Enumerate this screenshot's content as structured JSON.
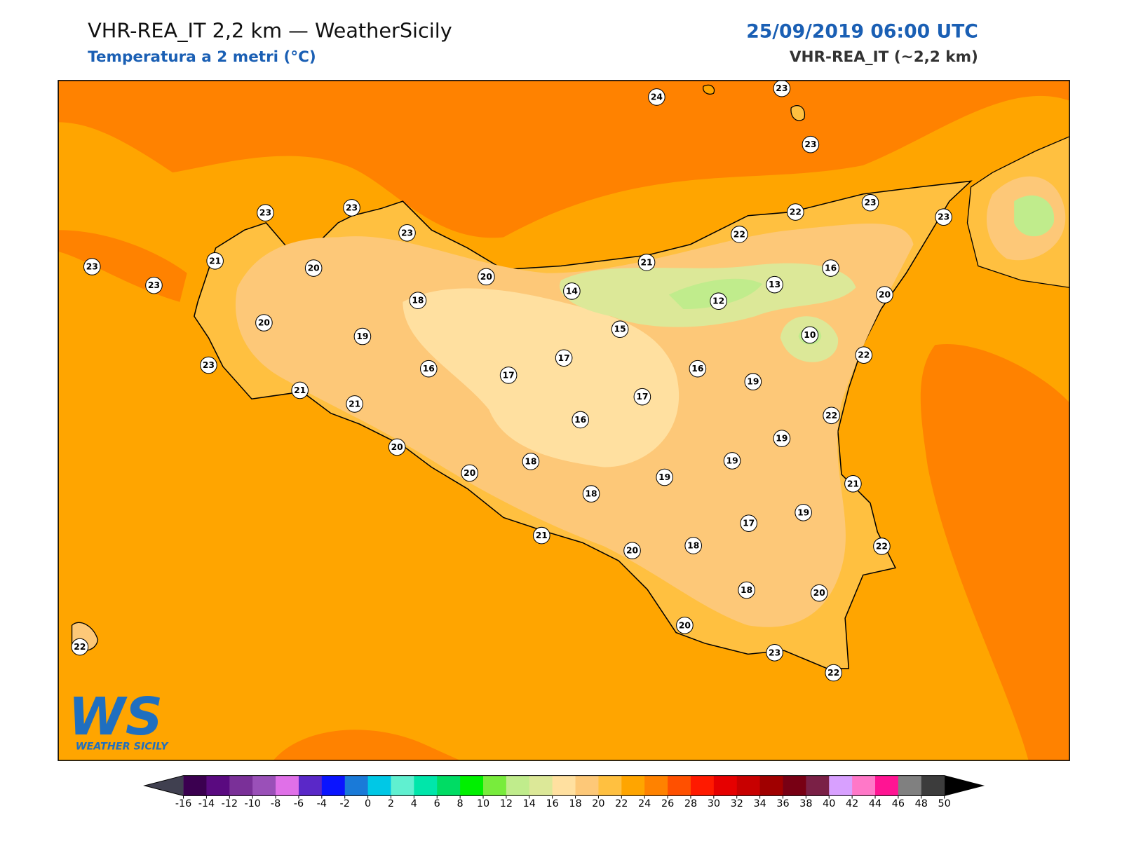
{
  "header": {
    "title": "VHR-REA_IT 2,2 km — WeatherSicily",
    "subtitle": "Temperatura a 2 metri (°C)",
    "datetime": "25/09/2019 06:00 UTC",
    "model": "VHR-REA_IT (~2,2 km)"
  },
  "stations": [
    24,
    23,
    23,
    23,
    23,
    23,
    22,
    23,
    23,
    22,
    21,
    20,
    23,
    23,
    20,
    21,
    16,
    13,
    14,
    18,
    12,
    20,
    20,
    15,
    10,
    19,
    22,
    17,
    23,
    16,
    17,
    16,
    19,
    21,
    17,
    21,
    22,
    16,
    19,
    20,
    18,
    19,
    19,
    20,
    21,
    18,
    19,
    17,
    21,
    18,
    22,
    20,
    18,
    20,
    20,
    22,
    23,
    22
  ],
  "colorbar": {
    "ticks": [
      -16,
      -14,
      -12,
      -10,
      -8,
      -6,
      -4,
      -2,
      0,
      2,
      4,
      6,
      8,
      10,
      12,
      14,
      16,
      18,
      20,
      22,
      24,
      26,
      28,
      30,
      32,
      34,
      36,
      38,
      40,
      42,
      44,
      46,
      48,
      50
    ],
    "colors": [
      "#3b0050",
      "#5a0a80",
      "#7a3098",
      "#9a50b8",
      "#e070e8",
      "#5a28c8",
      "#0a14ff",
      "#1a7ad8",
      "#00c8e6",
      "#60f0d0",
      "#00e6aa",
      "#00dc64",
      "#00f000",
      "#78ec3c",
      "#c0ec8c",
      "#dce898",
      "#ffe0a0",
      "#fdc878",
      "#ffc040",
      "#ffa500",
      "#ff8200",
      "#ff5000",
      "#ff1a00",
      "#e60000",
      "#c80000",
      "#a00000",
      "#780014",
      "#7a2046",
      "#d8a0ff",
      "#ff78c8",
      "#ff1493",
      "#808080",
      "#3c3c3c"
    ],
    "under": "#404050",
    "over": "#000000"
  },
  "logo": {
    "mark": "WS",
    "text": "WEATHER SICILY"
  }
}
